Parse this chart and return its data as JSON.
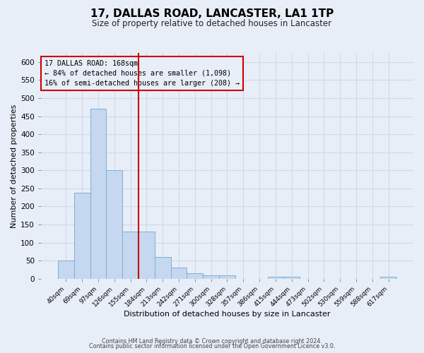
{
  "title": "17, DALLAS ROAD, LANCASTER, LA1 1TP",
  "subtitle": "Size of property relative to detached houses in Lancaster",
  "xlabel": "Distribution of detached houses by size in Lancaster",
  "ylabel": "Number of detached properties",
  "bar_labels": [
    "40sqm",
    "69sqm",
    "97sqm",
    "126sqm",
    "155sqm",
    "184sqm",
    "213sqm",
    "242sqm",
    "271sqm",
    "300sqm",
    "328sqm",
    "357sqm",
    "386sqm",
    "415sqm",
    "444sqm",
    "473sqm",
    "502sqm",
    "530sqm",
    "559sqm",
    "588sqm",
    "617sqm"
  ],
  "bar_heights": [
    50,
    238,
    470,
    300,
    130,
    130,
    60,
    30,
    15,
    10,
    10,
    0,
    0,
    5,
    5,
    0,
    0,
    0,
    0,
    0,
    5
  ],
  "bar_color": "#c5d8f0",
  "bar_edge_color": "#7aafd4",
  "ylim": [
    0,
    625
  ],
  "yticks": [
    0,
    50,
    100,
    150,
    200,
    250,
    300,
    350,
    400,
    450,
    500,
    550,
    600
  ],
  "vline_color": "#cc0000",
  "annotation_title": "17 DALLAS ROAD: 168sqm",
  "annotation_line1": "← 84% of detached houses are smaller (1,098)",
  "annotation_line2": "16% of semi-detached houses are larger (208) →",
  "annotation_box_edgecolor": "#cc0000",
  "footer_line1": "Contains HM Land Registry data © Crown copyright and database right 2024.",
  "footer_line2": "Contains public sector information licensed under the Open Government Licence v3.0.",
  "background_color": "#e8eef8",
  "grid_color": "#d0d8e8"
}
